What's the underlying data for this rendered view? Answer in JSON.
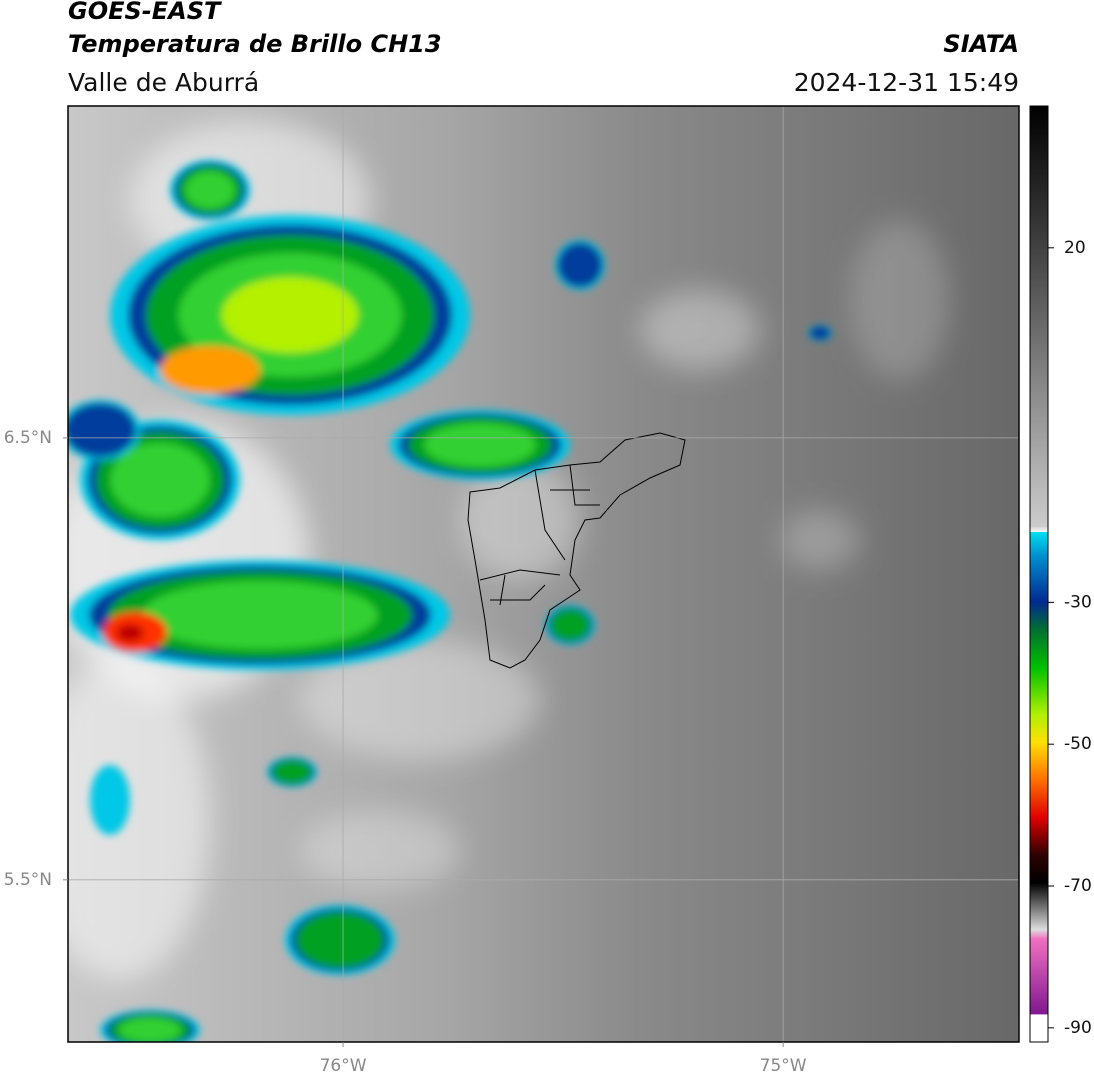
{
  "header": {
    "title": "GOES-EAST",
    "subtitle": "Temperatura de Brillo CH13",
    "region": "Valle de Aburrá",
    "source": "SIATA",
    "datetime": "2024-12-31 15:49"
  },
  "map": {
    "xlim": [
      -76.625,
      -74.464
    ],
    "ylim": [
      5.133,
      7.251
    ],
    "xticks": [
      {
        "value": -76,
        "label": "76°W"
      },
      {
        "value": -75,
        "label": "75°W"
      }
    ],
    "yticks": [
      {
        "value": 6.5,
        "label": "6.5°N"
      },
      {
        "value": 5.5,
        "label": "5.5°N"
      }
    ],
    "grid": true
  },
  "colorbar": {
    "lim": [
      -92,
      40
    ],
    "ticks": [
      20,
      -30,
      -50,
      -70,
      -90
    ]
  }
}
